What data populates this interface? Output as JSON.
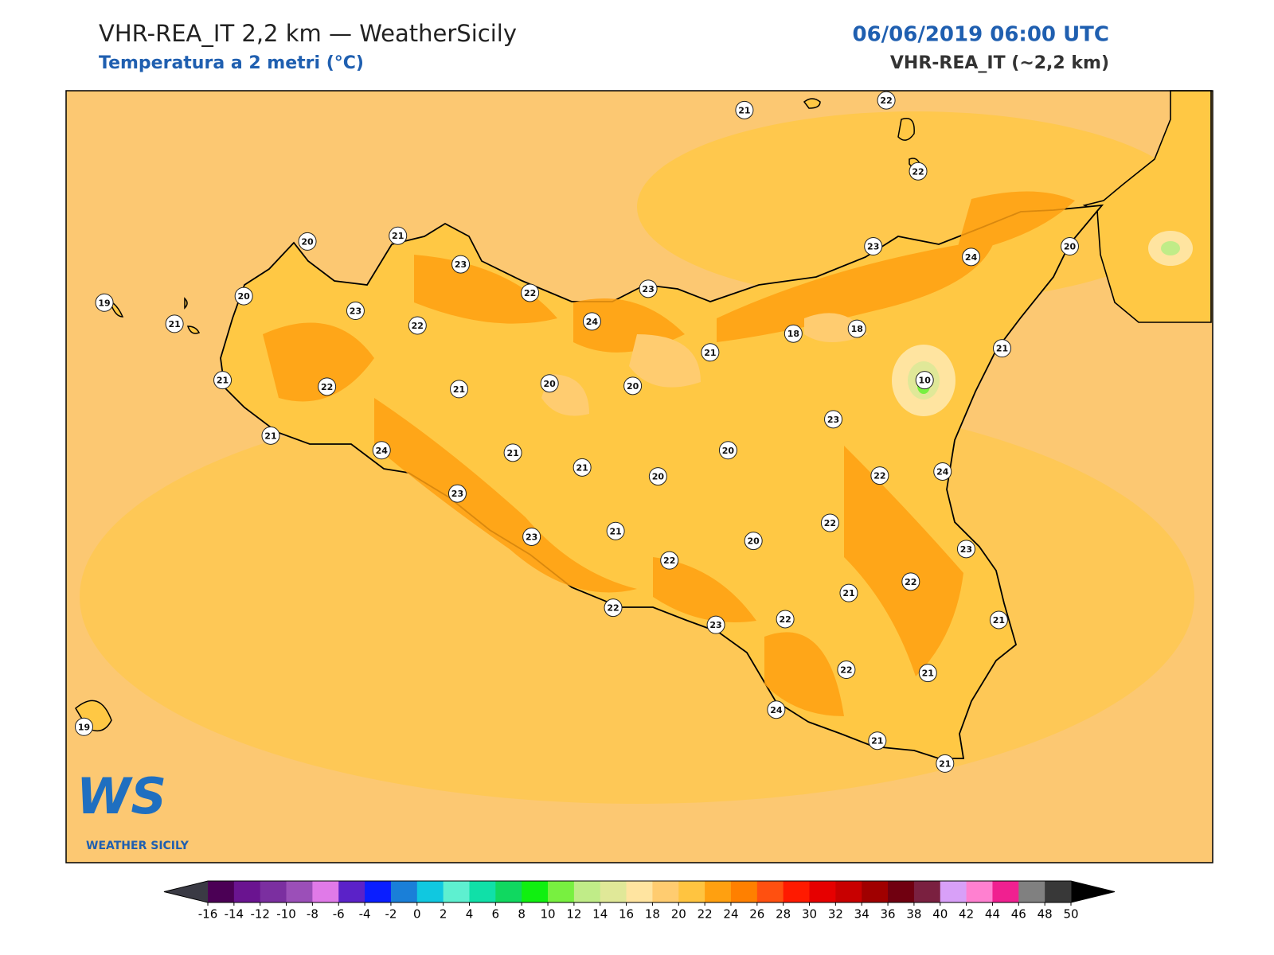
{
  "header": {
    "title": "VHR-REA_IT 2,2 km — WeatherSicily",
    "subtitle": "Temperatura a 2 metri (°C)",
    "datetime": "06/06/2019 06:00 UTC",
    "model": "VHR-REA_IT (~2,2 km)"
  },
  "stations": [
    21,
    22,
    22,
    20,
    21,
    23,
    22,
    23,
    23,
    24,
    20,
    19,
    21,
    20,
    23,
    22,
    24,
    18,
    18,
    21,
    21,
    10,
    21,
    22,
    21,
    20,
    20,
    21,
    23,
    24,
    21,
    20,
    21,
    20,
    22,
    24,
    23,
    22,
    23,
    21,
    20,
    22,
    23,
    21,
    22,
    22,
    22,
    23,
    21,
    22,
    21,
    24,
    21,
    21,
    19
  ],
  "logo": {
    "mark": "WS",
    "text": "WEATHER SICILY"
  },
  "colorbar": {
    "ticks": [
      -16,
      -14,
      -12,
      -10,
      -8,
      -6,
      -4,
      -2,
      0,
      2,
      4,
      6,
      8,
      10,
      12,
      14,
      16,
      18,
      20,
      22,
      24,
      26,
      28,
      30,
      32,
      34,
      36,
      38,
      40,
      42,
      44,
      46,
      48,
      50
    ],
    "colors": [
      "#4b0055",
      "#6a1490",
      "#7b2fa0",
      "#9b4fb8",
      "#e07ae8",
      "#5b22c8",
      "#0a1eff",
      "#1a7fd8",
      "#10c8e0",
      "#5ef0d0",
      "#10e0a8",
      "#10d860",
      "#10f010",
      "#78f040",
      "#c0ec88",
      "#e0e898",
      "#ffe4a0",
      "#ffcc70",
      "#ffc440",
      "#ffa010",
      "#ff8000",
      "#ff5010",
      "#ff1a00",
      "#e60000",
      "#c80000",
      "#a00000",
      "#700010",
      "#7a2040",
      "#d8a0f8",
      "#ff80d0",
      "#f02090",
      "#808080",
      "#383838"
    ],
    "under_color": "#3a3a44",
    "over_color": "#000000"
  }
}
